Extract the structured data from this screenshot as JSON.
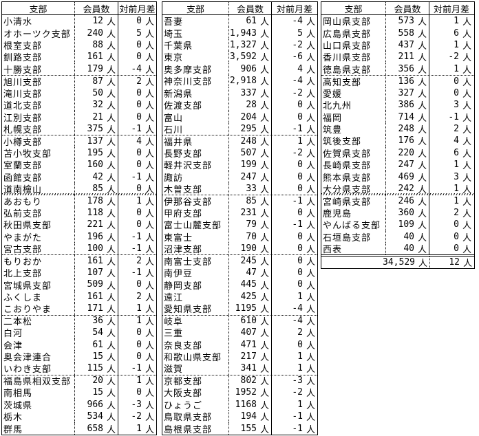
{
  "page": {
    "background": "#ffffff",
    "text_color": "#000000",
    "border_color": "#000000"
  },
  "columns": {
    "branch": "支部",
    "members": "会員数",
    "diff": "対前月差"
  },
  "unit": "人",
  "tables": [
    {
      "name": "branch-table-hokkaido-tohoku",
      "dotted_after": [
        5,
        10,
        20,
        25,
        30
      ],
      "wavy_after": [
        15
      ],
      "rows": [
        [
          "小清水",
          "12",
          "0"
        ],
        [
          "オホーツク支部",
          "240",
          "5"
        ],
        [
          "根室支部",
          "88",
          "0"
        ],
        [
          "釧路支部",
          "161",
          "0"
        ],
        [
          "十勝支部",
          "179",
          "-4"
        ],
        [
          "旭川支部",
          "87",
          "2"
        ],
        [
          "滝川支部",
          "50",
          "0"
        ],
        [
          "道北支部",
          "32",
          "0"
        ],
        [
          "江別支部",
          "21",
          "0"
        ],
        [
          "札幌支部",
          "375",
          "-1"
        ],
        [
          "小樽支部",
          "137",
          "4"
        ],
        [
          "苫小牧支部",
          "195",
          "0"
        ],
        [
          "室蘭支部",
          "160",
          "0"
        ],
        [
          "函館支部",
          "42",
          "-1"
        ],
        [
          "道南檜山",
          "85",
          "0"
        ],
        [
          "あおもり",
          "178",
          "1"
        ],
        [
          "弘前支部",
          "118",
          "0"
        ],
        [
          "秋田県支部",
          "221",
          "0"
        ],
        [
          "やまがた",
          "196",
          "-1"
        ],
        [
          "宮古支部",
          "100",
          "-1"
        ],
        [
          "もりおか",
          "161",
          "2"
        ],
        [
          "北上支部",
          "107",
          "-1"
        ],
        [
          "宮城県支部",
          "509",
          "0"
        ],
        [
          "ふくしま",
          "161",
          "2"
        ],
        [
          "こおりやま",
          "171",
          "1"
        ],
        [
          "二本松",
          "36",
          "1"
        ],
        [
          "白河",
          "54",
          "0"
        ],
        [
          "会津",
          "61",
          "0"
        ],
        [
          "奥会津連合",
          "15",
          "0"
        ],
        [
          "いわき支部",
          "115",
          "-1"
        ],
        [
          "福島県相双支部",
          "20",
          "1"
        ],
        [
          "南相馬",
          "15",
          "0"
        ],
        [
          "茨城県",
          "966",
          "-3"
        ],
        [
          "栃木",
          "534",
          "-2"
        ],
        [
          "群馬",
          "658",
          "1"
        ]
      ]
    },
    {
      "name": "branch-table-kanto-chubu-kansai",
      "dotted_after": [
        10,
        15,
        20,
        25,
        30
      ],
      "wavy_after": [],
      "rows": [
        [
          "吾妻",
          "61",
          "-4"
        ],
        [
          "埼玉",
          "1,943",
          "5"
        ],
        [
          "千葉県",
          "1,327",
          "-2"
        ],
        [
          "東京",
          "3,592",
          "-6"
        ],
        [
          "奥多摩支部",
          "906",
          "4"
        ],
        [
          "神奈川支部",
          "2,918",
          "-4"
        ],
        [
          "新潟県",
          "337",
          "-2"
        ],
        [
          "佐渡支部",
          "28",
          "0"
        ],
        [
          "富山",
          "204",
          "0"
        ],
        [
          "石川",
          "295",
          "-1"
        ],
        [
          "福井県",
          "248",
          "1"
        ],
        [
          "長野支部",
          "507",
          "-2"
        ],
        [
          "軽井沢支部",
          "199",
          "0"
        ],
        [
          "諏訪",
          "247",
          "0"
        ],
        [
          "木曽支部",
          "33",
          "0"
        ],
        [
          "伊那谷支部",
          "85",
          "-1"
        ],
        [
          "甲府支部",
          "231",
          "0"
        ],
        [
          "富士山麓支部",
          "79",
          "-1"
        ],
        [
          "東富士",
          "70",
          "0"
        ],
        [
          "沼津支部",
          "190",
          "0"
        ],
        [
          "南富士支部",
          "245",
          "0"
        ],
        [
          "南伊豆",
          "47",
          "0"
        ],
        [
          "静岡支部",
          "445",
          "0"
        ],
        [
          "遠江",
          "425",
          "1"
        ],
        [
          "愛知県支部",
          "1195",
          "-4"
        ],
        [
          "岐阜",
          "610",
          "-4"
        ],
        [
          "三重",
          "407",
          "2"
        ],
        [
          "奈良支部",
          "471",
          "0"
        ],
        [
          "和歌山県支部",
          "217",
          "1"
        ],
        [
          "滋賀",
          "341",
          "1"
        ],
        [
          "京都支部",
          "802",
          "-3"
        ],
        [
          "大阪支部",
          "1952",
          "-2"
        ],
        [
          "ひょうご",
          "1168",
          "1"
        ],
        [
          "鳥取県支部",
          "194",
          "-1"
        ],
        [
          "島根県支部",
          "155",
          "-1"
        ]
      ]
    },
    {
      "name": "branch-table-chugoku-shikoku-kyushu",
      "dotted_after": [
        5
      ],
      "wavy_after": [
        15
      ],
      "rows": [
        [
          "岡山県支部",
          "573",
          "1"
        ],
        [
          "広島県支部",
          "558",
          "6"
        ],
        [
          "山口県支部",
          "437",
          "1"
        ],
        [
          "香川県支部",
          "211",
          "-2"
        ],
        [
          "徳島県支部",
          "356",
          "1"
        ],
        [
          "高知支部",
          "136",
          "0"
        ],
        [
          "愛媛",
          "327",
          "0"
        ],
        [
          "北九州",
          "386",
          "3"
        ],
        [
          "福岡",
          "714",
          "-1"
        ],
        [
          "筑豊",
          "248",
          "2"
        ],
        [
          "筑後支部",
          "176",
          "4"
        ],
        [
          "佐賀県支部",
          "220",
          "6"
        ],
        [
          "長崎県支部",
          "247",
          "1"
        ],
        [
          "熊本県支部",
          "469",
          "3"
        ],
        [
          "大分県支部",
          "242",
          "1"
        ],
        [
          "宮崎県支部",
          "246",
          "1"
        ],
        [
          "鹿児島",
          "360",
          "2"
        ],
        [
          "やんばる支部",
          "109",
          "0"
        ],
        [
          "石垣島支部",
          "40",
          "0"
        ],
        [
          "西表",
          "40",
          "0"
        ]
      ]
    }
  ],
  "total": {
    "members": "34,529",
    "diff": "12"
  }
}
